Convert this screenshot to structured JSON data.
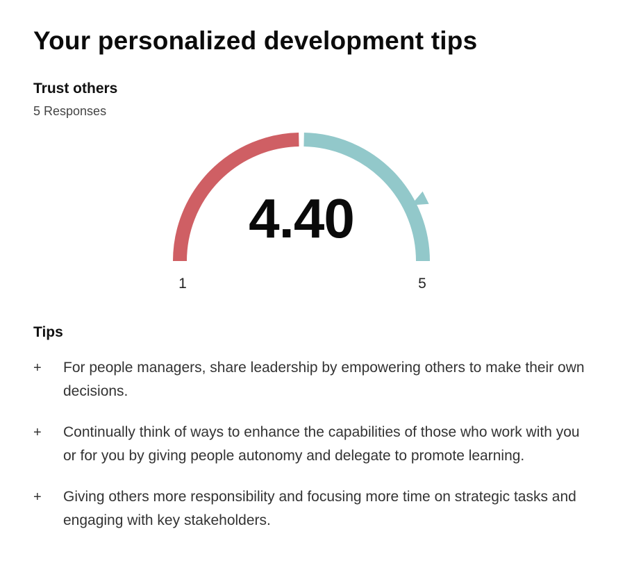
{
  "page": {
    "title": "Your personalized development tips"
  },
  "metric": {
    "title": "Trust others",
    "responses": "5 Responses",
    "score": 4.4,
    "score_text": "4.40",
    "scale_min": 1,
    "scale_max": 5,
    "scale_min_label": "1",
    "scale_max_label": "5",
    "colors": {
      "low": "#cf5f64",
      "high": "#92c8ca",
      "marker": "#92c8ca"
    }
  },
  "tips": {
    "heading": "Tips",
    "bullet": "+",
    "items": [
      {
        "text": "For people managers, share leadership by empowering others to make their own decisions."
      },
      {
        "text": "Continually think of ways to enhance the capabilities of those who work with you or for you by giving people autonomy and delegate to promote learning."
      },
      {
        "text": "Giving others more responsibility and focusing more time on strategic tasks and engaging with key stakeholders."
      }
    ]
  }
}
